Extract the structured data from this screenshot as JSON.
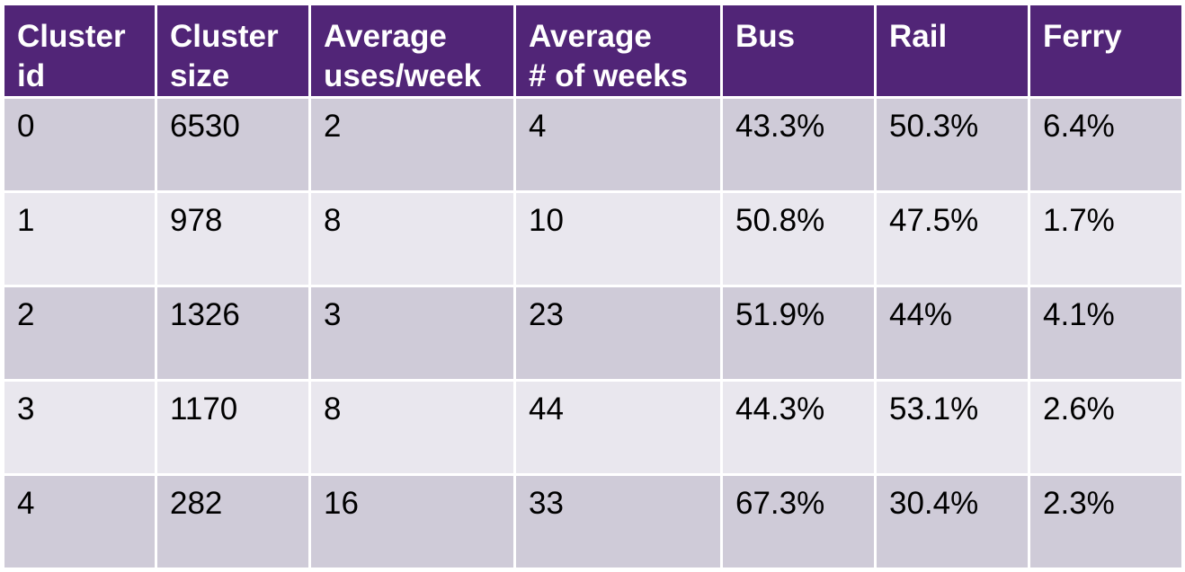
{
  "table": {
    "headers": [
      [
        "Cluster",
        "id"
      ],
      [
        "Cluster",
        "size"
      ],
      [
        "Average",
        "uses/week"
      ],
      [
        "Average",
        "# of weeks"
      ],
      [
        "Bus",
        ""
      ],
      [
        "Rail",
        ""
      ],
      [
        "Ferry",
        ""
      ]
    ],
    "rows": [
      [
        "0",
        "6530",
        "2",
        "4",
        "43.3%",
        "50.3%",
        "6.4%"
      ],
      [
        "1",
        "978",
        "8",
        "10",
        "50.8%",
        "47.5%",
        "1.7%"
      ],
      [
        "2",
        "1326",
        "3",
        "23",
        "51.9%",
        "44%",
        "4.1%"
      ],
      [
        "3",
        "1170",
        "8",
        "44",
        "44.3%",
        "53.1%",
        "2.6%"
      ],
      [
        "4",
        "282",
        "16",
        "33",
        "67.3%",
        "30.4%",
        "2.3%"
      ]
    ]
  },
  "colors": {
    "header_bg": "#512577",
    "header_text": "#ffffff",
    "row_odd_bg": "#cfcbd8",
    "row_even_bg": "#e9e7ee",
    "grid_lines": "#ffffff"
  }
}
